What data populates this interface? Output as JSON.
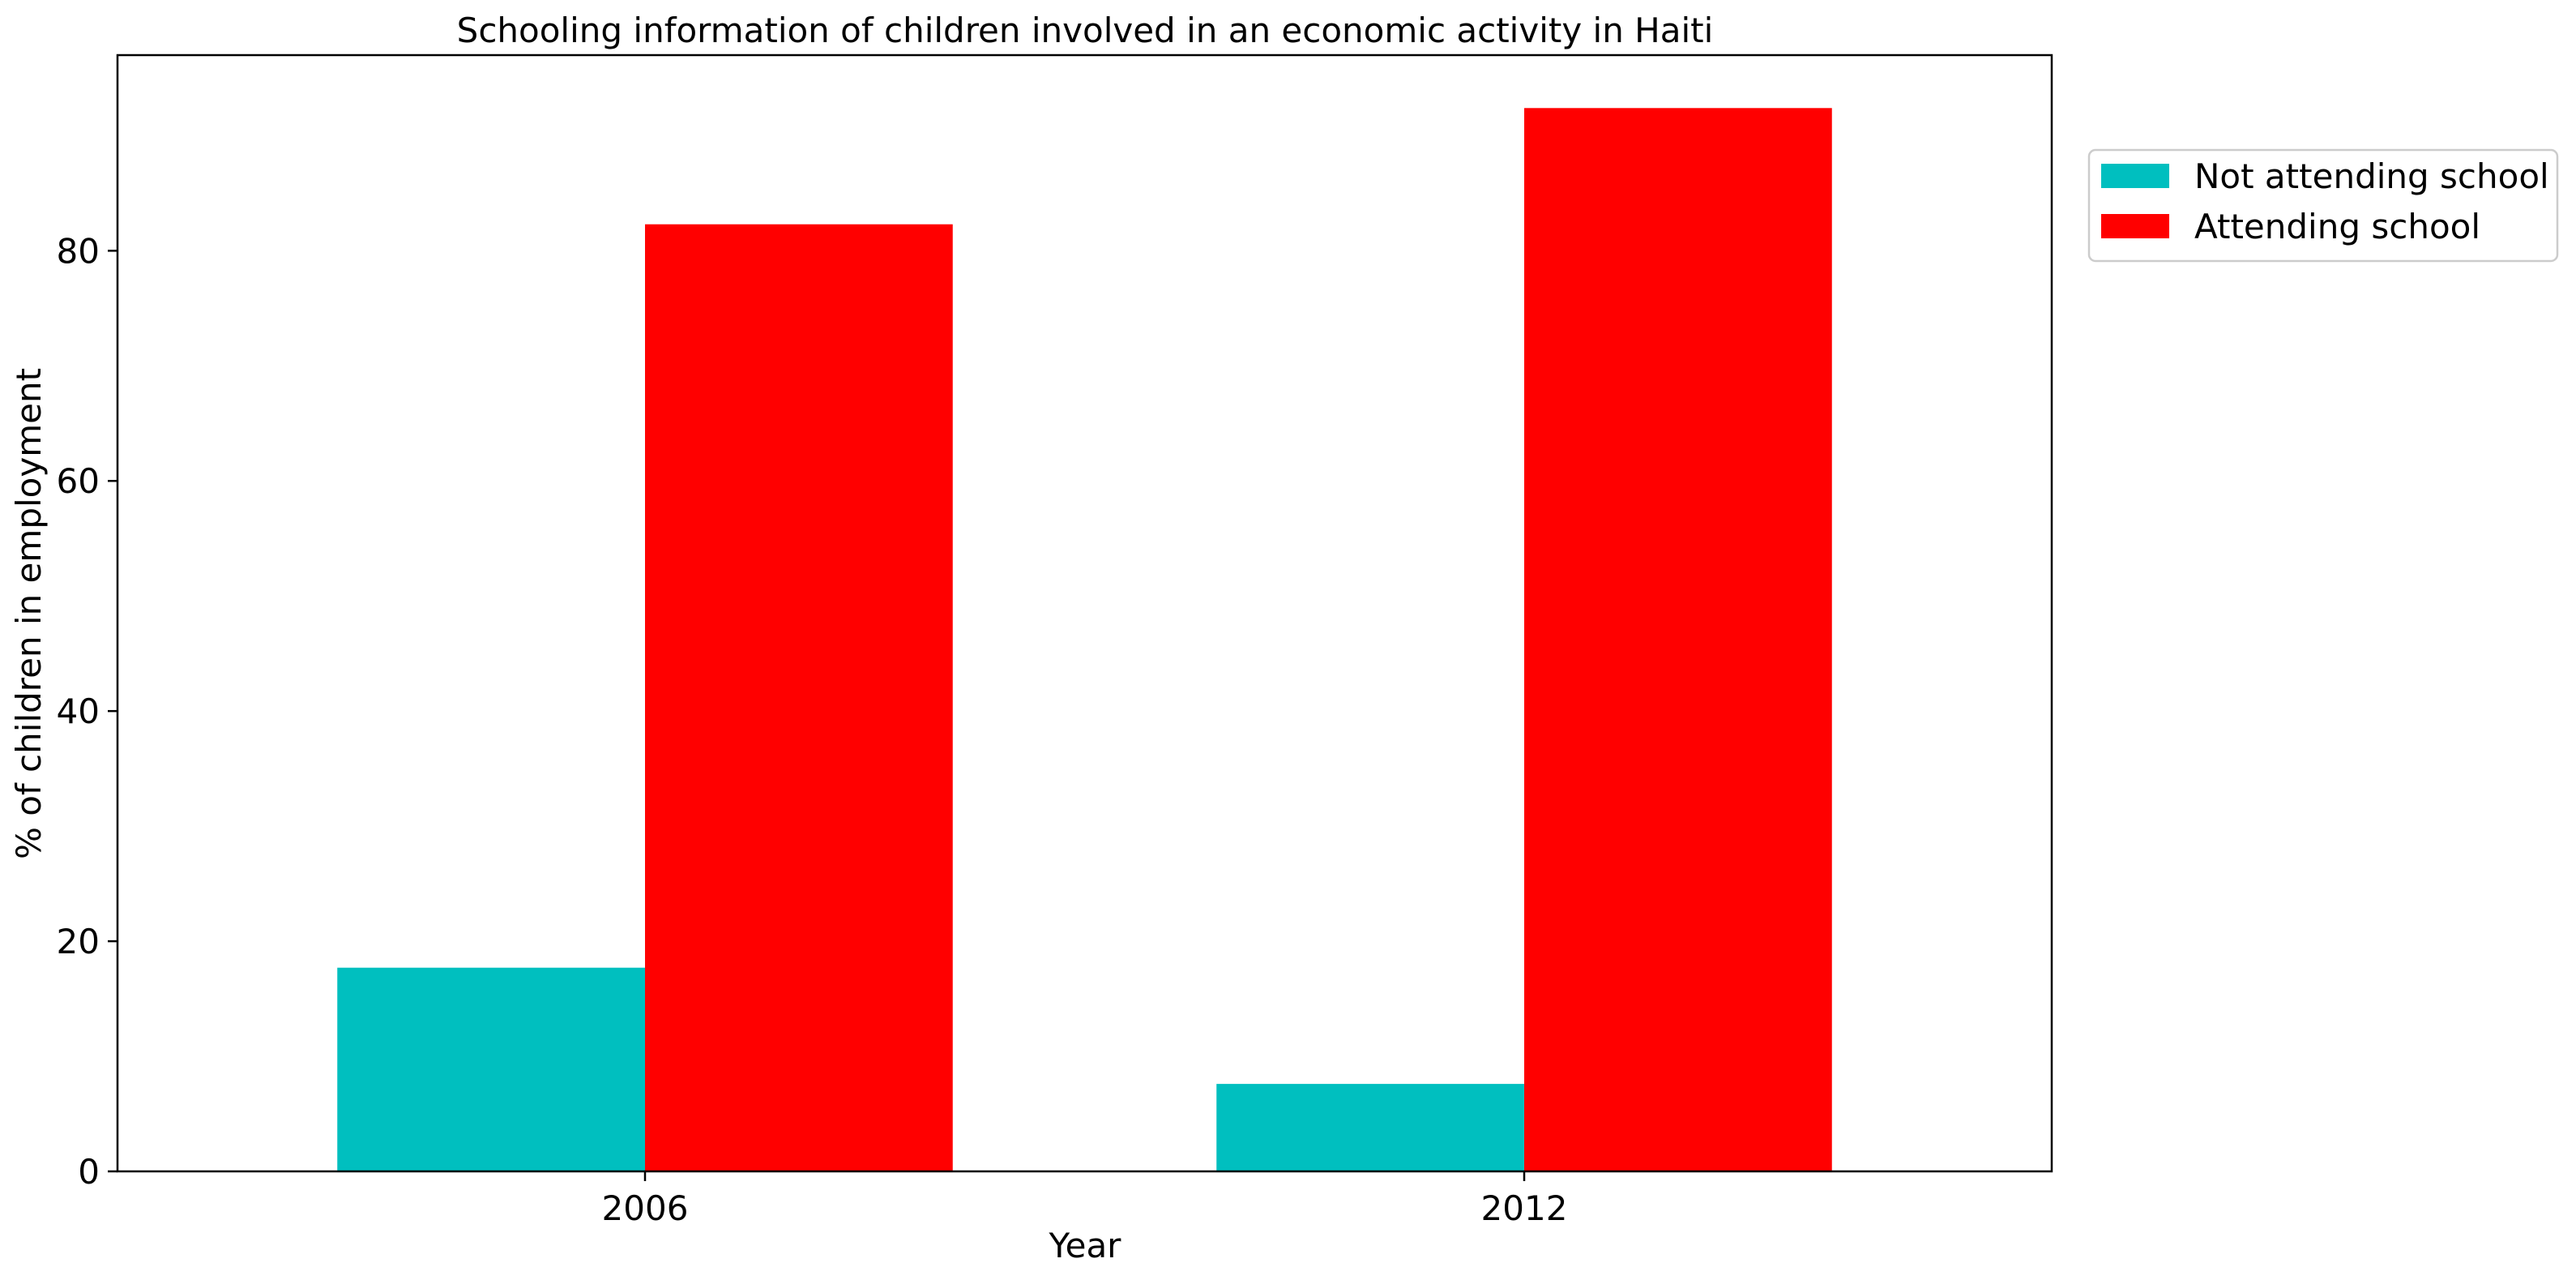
{
  "chart_data": {
    "type": "bar",
    "title": "Schooling information of children involved in an economic activity in Haiti",
    "xlabel": "Year",
    "ylabel": "% of children in employment",
    "categories": [
      "2006",
      "2012"
    ],
    "series": [
      {
        "name": "Not attending school",
        "values": [
          17.7,
          7.6
        ],
        "color": "#00bfbf"
      },
      {
        "name": "Attending school",
        "values": [
          82.3,
          92.4
        ],
        "color": "#ff0000"
      }
    ],
    "yticks": [
      "0",
      "20",
      "40",
      "60",
      "80"
    ],
    "ylim": [
      0,
      97
    ],
    "grid": false,
    "legend_position": "outside-top-right"
  }
}
